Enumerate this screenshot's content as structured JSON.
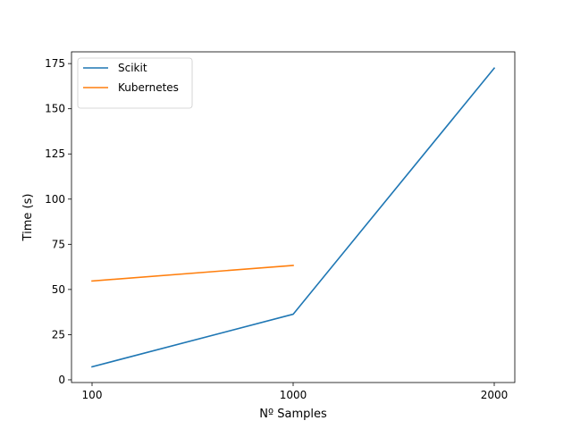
{
  "chart_data": {
    "type": "line",
    "title": "",
    "xlabel": "Nº Samples",
    "ylabel": "Time (s)",
    "x_categories": [
      "100",
      "1000",
      "2000"
    ],
    "ylim": [
      -1.5,
      181.5
    ],
    "yticks": [
      0,
      25,
      50,
      75,
      100,
      125,
      150,
      175
    ],
    "grid": false,
    "legend_position": "top-left",
    "series": [
      {
        "name": "Scikit",
        "color": "#1f77b4",
        "x": [
          "100",
          "1000",
          "2000"
        ],
        "y": [
          7.2,
          36.3,
          172.5
        ]
      },
      {
        "name": "Kubernetes",
        "color": "#ff7f0e",
        "x": [
          "100",
          "1000"
        ],
        "y": [
          54.7,
          63.3
        ]
      }
    ]
  }
}
